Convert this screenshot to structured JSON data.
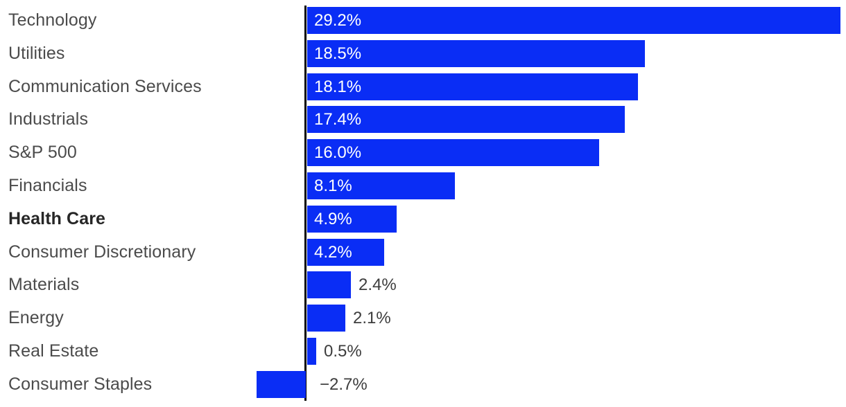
{
  "chart_data": {
    "type": "bar",
    "orientation": "horizontal",
    "title": "",
    "xlabel": "",
    "ylabel": "",
    "value_format": "percent",
    "zero_line": true,
    "grid": false,
    "legend": false,
    "xlim": [
      -3.5,
      29.6
    ],
    "categories": [
      "Technology",
      "Utilities",
      "Communication Services",
      "Industrials",
      "S&P 500",
      "Financials",
      "Health Care",
      "Consumer Discretionary",
      "Materials",
      "Energy",
      "Real Estate",
      "Consumer Staples"
    ],
    "values": [
      29.2,
      18.5,
      18.1,
      17.4,
      16.0,
      8.1,
      4.9,
      4.2,
      2.4,
      2.1,
      0.5,
      -2.7
    ],
    "bars": [
      {
        "slug": "technology",
        "category": "Technology",
        "value": 29.2,
        "label": "29.2%",
        "emphasized": false
      },
      {
        "slug": "utilities",
        "category": "Utilities",
        "value": 18.5,
        "label": "18.5%",
        "emphasized": false
      },
      {
        "slug": "communication-services",
        "category": "Communication Services",
        "value": 18.1,
        "label": "18.1%",
        "emphasized": false
      },
      {
        "slug": "industrials",
        "category": "Industrials",
        "value": 17.4,
        "label": "17.4%",
        "emphasized": false
      },
      {
        "slug": "sp-500",
        "category": "S&P 500",
        "value": 16.0,
        "label": "16.0%",
        "emphasized": false
      },
      {
        "slug": "financials",
        "category": "Financials",
        "value": 8.1,
        "label": "8.1%",
        "emphasized": false
      },
      {
        "slug": "health-care",
        "category": "Health Care",
        "value": 4.9,
        "label": "4.9%",
        "emphasized": true
      },
      {
        "slug": "consumer-discretionary",
        "category": "Consumer Discretionary",
        "value": 4.2,
        "label": "4.2%",
        "emphasized": false
      },
      {
        "slug": "materials",
        "category": "Materials",
        "value": 2.4,
        "label": "2.4%",
        "emphasized": false
      },
      {
        "slug": "energy",
        "category": "Energy",
        "value": 2.1,
        "label": "2.1%",
        "emphasized": false
      },
      {
        "slug": "real-estate",
        "category": "Real Estate",
        "value": 0.5,
        "label": "0.5%",
        "emphasized": false
      },
      {
        "slug": "consumer-staples",
        "category": "Consumer Staples",
        "value": -2.7,
        "label": "−2.7%",
        "emphasized": false
      }
    ]
  },
  "style": {
    "bar_color": "#0A2DF5",
    "axis_color": "#000000",
    "background_color": "#FFFFFF",
    "category_label_color": "#4B4B4B",
    "emphasized_label_color": "#262626",
    "inside_value_color": "#FFFFFF",
    "outside_value_color": "#3D3D3D"
  }
}
